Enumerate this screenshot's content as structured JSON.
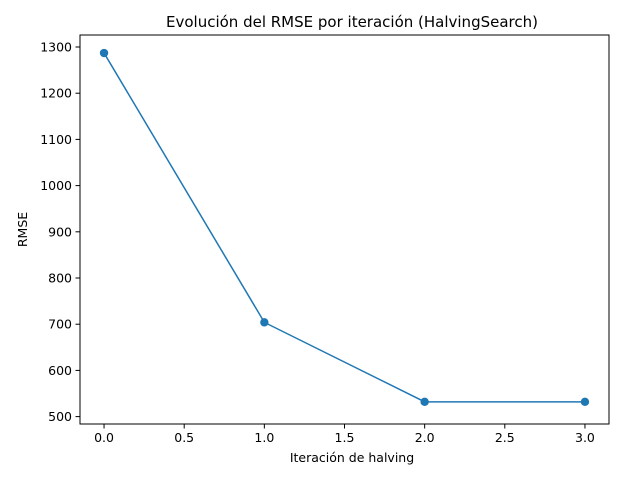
{
  "chart_data": {
    "type": "line",
    "title": "Evolución del RMSE por iteración (HalvingSearch)",
    "xlabel": "Iteración de halving",
    "ylabel": "RMSE",
    "x": [
      0,
      1,
      2,
      3
    ],
    "series": [
      {
        "values": [
          1287,
          704,
          532,
          532
        ],
        "color": "#1f77b4",
        "marker": "circle"
      }
    ],
    "xlim": [
      -0.15,
      3.15
    ],
    "ylim": [
      484,
      1326
    ],
    "xticks": [
      0.0,
      0.5,
      1.0,
      1.5,
      2.0,
      2.5,
      3.0
    ],
    "xtick_labels": [
      "0.0",
      "0.5",
      "1.0",
      "1.5",
      "2.0",
      "2.5",
      "3.0"
    ],
    "yticks": [
      500,
      600,
      700,
      800,
      900,
      1000,
      1100,
      1200,
      1300
    ],
    "ytick_labels": [
      "500",
      "600",
      "700",
      "800",
      "900",
      "1000",
      "1100",
      "1200",
      "1300"
    ],
    "grid": false,
    "legend": "none"
  }
}
